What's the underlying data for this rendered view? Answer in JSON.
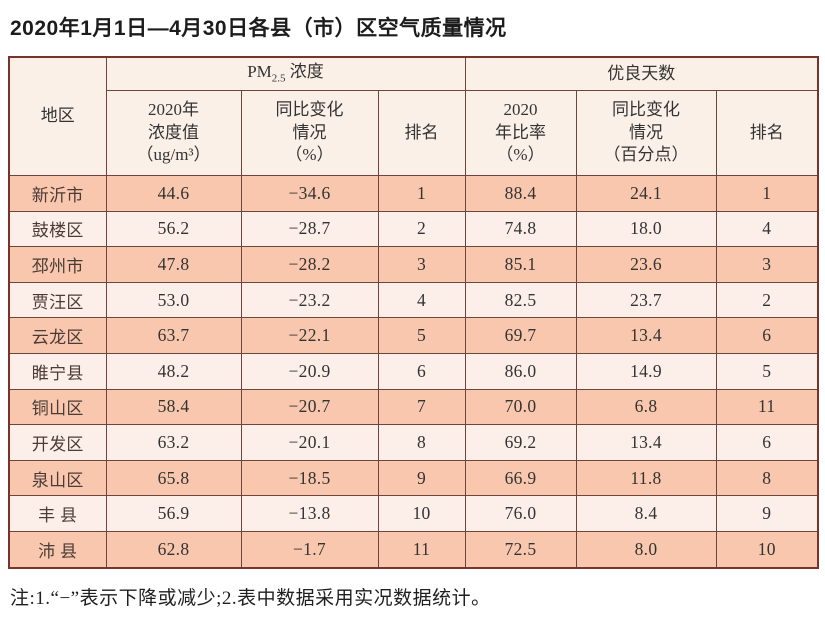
{
  "page": {
    "title": "2020年1月1日—4月30日各县（市）区空气质量情况",
    "note": "注:1.“−”表示下降或减少;2.表中数据采用实况数据统计。"
  },
  "table": {
    "headers": {
      "region": "地区",
      "pm_group": {
        "prefix": "PM",
        "sub": "2.5",
        "suffix": " 浓度"
      },
      "good_group": "优良天数",
      "pm_value": "2020年\n浓度值\n（ug/m³）",
      "pm_change": "同比变化\n情况\n（%）",
      "pm_rank": "排名",
      "good_rate": "2020\n年比率\n（%）",
      "good_change": "同比变化\n情况\n（百分点）",
      "good_rank": "排名"
    },
    "columns": [
      "region",
      "pm_value",
      "pm_change",
      "pm_rank",
      "good_rate",
      "good_change",
      "good_rank"
    ],
    "rows": [
      {
        "region": "新沂市",
        "pm_value": "44.6",
        "pm_change": "−34.6",
        "pm_rank": "1",
        "good_rate": "88.4",
        "good_change": "24.1",
        "good_rank": "1"
      },
      {
        "region": "鼓楼区",
        "pm_value": "56.2",
        "pm_change": "−28.7",
        "pm_rank": "2",
        "good_rate": "74.8",
        "good_change": "18.0",
        "good_rank": "4"
      },
      {
        "region": "邳州市",
        "pm_value": "47.8",
        "pm_change": "−28.2",
        "pm_rank": "3",
        "good_rate": "85.1",
        "good_change": "23.6",
        "good_rank": "3"
      },
      {
        "region": "贾汪区",
        "pm_value": "53.0",
        "pm_change": "−23.2",
        "pm_rank": "4",
        "good_rate": "82.5",
        "good_change": "23.7",
        "good_rank": "2"
      },
      {
        "region": "云龙区",
        "pm_value": "63.7",
        "pm_change": "−22.1",
        "pm_rank": "5",
        "good_rate": "69.7",
        "good_change": "13.4",
        "good_rank": "6"
      },
      {
        "region": "睢宁县",
        "pm_value": "48.2",
        "pm_change": "−20.9",
        "pm_rank": "6",
        "good_rate": "86.0",
        "good_change": "14.9",
        "good_rank": "5"
      },
      {
        "region": "铜山区",
        "pm_value": "58.4",
        "pm_change": "−20.7",
        "pm_rank": "7",
        "good_rate": "70.0",
        "good_change": "6.8",
        "good_rank": "11"
      },
      {
        "region": "开发区",
        "pm_value": "63.2",
        "pm_change": "−20.1",
        "pm_rank": "8",
        "good_rate": "69.2",
        "good_change": "13.4",
        "good_rank": "6"
      },
      {
        "region": "泉山区",
        "pm_value": "65.8",
        "pm_change": "−18.5",
        "pm_rank": "9",
        "good_rate": "66.9",
        "good_change": "11.8",
        "good_rank": "8"
      },
      {
        "region": "丰 县",
        "pm_value": "56.9",
        "pm_change": "−13.8",
        "pm_rank": "10",
        "good_rate": "76.0",
        "good_change": "8.4",
        "good_rank": "9"
      },
      {
        "region": "沛 县",
        "pm_value": "62.8",
        "pm_change": "−1.7",
        "pm_rank": "11",
        "good_rate": "72.5",
        "good_change": "8.0",
        "good_rank": "10"
      }
    ]
  },
  "colors": {
    "row_odd": "#f8c7ae",
    "row_even": "#fcefe9",
    "header_bg": "#fbf0e7",
    "inner_border": "#6e453c",
    "outer_border": "#7a332b"
  },
  "chart_data": {
    "type": "table",
    "title": "2020年1月1日—4月30日各县（市）区空气质量情况",
    "column_groups": [
      "地区",
      "PM2.5浓度",
      "优良天数"
    ],
    "columns": [
      "地区",
      "PM2.5 2020年浓度值（ug/m³）",
      "PM2.5 同比变化情况（%）",
      "PM2.5 排名",
      "优良天数 2020年比率（%）",
      "优良天数 同比变化情况（百分点）",
      "优良天数 排名"
    ],
    "rows": [
      [
        "新沂市",
        44.6,
        -34.6,
        1,
        88.4,
        24.1,
        1
      ],
      [
        "鼓楼区",
        56.2,
        -28.7,
        2,
        74.8,
        18.0,
        4
      ],
      [
        "邳州市",
        47.8,
        -28.2,
        3,
        85.1,
        23.6,
        3
      ],
      [
        "贾汪区",
        53.0,
        -23.2,
        4,
        82.5,
        23.7,
        2
      ],
      [
        "云龙区",
        63.7,
        -22.1,
        5,
        69.7,
        13.4,
        6
      ],
      [
        "睢宁县",
        48.2,
        -20.9,
        6,
        86.0,
        14.9,
        5
      ],
      [
        "铜山区",
        58.4,
        -20.7,
        7,
        70.0,
        6.8,
        11
      ],
      [
        "开发区",
        63.2,
        -20.1,
        8,
        69.2,
        13.4,
        6
      ],
      [
        "泉山区",
        65.8,
        -18.5,
        9,
        66.9,
        11.8,
        8
      ],
      [
        "丰县",
        56.9,
        -13.8,
        10,
        76.0,
        8.4,
        9
      ],
      [
        "沛县",
        62.8,
        -1.7,
        11,
        72.5,
        8.0,
        10
      ]
    ],
    "note": "注:1.“−”表示下降或减少;2.表中数据采用实况数据统计。"
  }
}
